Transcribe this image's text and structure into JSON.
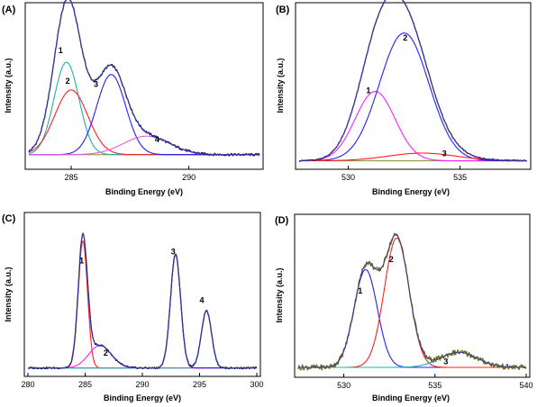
{
  "chart_data": [
    {
      "panel": "(A)",
      "type": "line",
      "xlabel": "Binding Energy (eV)",
      "ylabel": "Intensity (a.u.)",
      "xlim": [
        283.2,
        293.0
      ],
      "xticks": [
        285,
        290
      ],
      "baseline": 0.06,
      "raw_noise": 0.008,
      "envelope_color": "#1a1a6e",
      "series": [
        {
          "key": "1",
          "color": "#20b2aa",
          "center": 284.8,
          "fwhm": 1.25,
          "height": 0.6
        },
        {
          "key": "2",
          "color": "#ff2020",
          "center": 285.0,
          "fwhm": 1.65,
          "height": 0.42
        },
        {
          "key": "3",
          "color": "#2020ff",
          "center": 286.7,
          "fwhm": 1.45,
          "height": 0.52
        },
        {
          "key": "4",
          "color": "#e060e0",
          "center": 288.2,
          "fwhm": 2.3,
          "height": 0.12
        }
      ],
      "peak_labels": [
        {
          "text": "1",
          "x": 284.55,
          "y": 0.72
        },
        {
          "text": "2",
          "x": 284.85,
          "y": 0.52
        },
        {
          "text": "3",
          "x": 286.05,
          "y": 0.5
        },
        {
          "text": "4",
          "x": 288.65,
          "y": 0.14
        }
      ]
    },
    {
      "panel": "(B)",
      "type": "line",
      "xlabel": "Binding Energy (eV)",
      "ylabel": "Intensity (a.u.)",
      "xlim": [
        527.8,
        538.0
      ],
      "xticks": [
        530,
        535
      ],
      "baseline": 0.02,
      "raw_noise": 0.004,
      "envelope_color": "#1a1a6e",
      "series": [
        {
          "key": "1",
          "color": "#ff20ff",
          "center": 531.2,
          "fwhm": 2.1,
          "height": 0.45
        },
        {
          "key": "2",
          "color": "#2020ff",
          "center": 532.5,
          "fwhm": 2.6,
          "height": 0.83
        },
        {
          "key": "3",
          "color": "#ff2020",
          "center": 533.3,
          "fwhm": 3.6,
          "height": 0.05
        }
      ],
      "peak_labels": [
        {
          "text": "1",
          "x": 530.9,
          "y": 0.46
        },
        {
          "text": "2",
          "x": 532.55,
          "y": 0.8
        },
        {
          "text": "3",
          "x": 534.3,
          "y": 0.05
        }
      ]
    },
    {
      "panel": "(C)",
      "type": "line",
      "xlabel": "Binding Energy (eV)",
      "ylabel": "Intensity (a.u.)",
      "xlim": [
        280,
        300
      ],
      "xticks": [
        280,
        285,
        290,
        295,
        300
      ],
      "baseline": 0.02,
      "raw_noise": 0.006,
      "envelope_color": "#1a1a6e",
      "series": [
        {
          "key": "1",
          "color": "#ff2020",
          "center": 284.8,
          "fwhm": 0.95,
          "height": 0.84
        },
        {
          "key": "2",
          "color": "#ff20ff",
          "center": 286.3,
          "fwhm": 2.3,
          "height": 0.15
        },
        {
          "key": "3",
          "color": "#2020ff",
          "center": 292.9,
          "fwhm": 1.05,
          "height": 0.75
        },
        {
          "key": "4",
          "color": "#20b2aa",
          "center": 295.6,
          "fwhm": 1.05,
          "height": 0.38
        }
      ],
      "peak_labels": [
        {
          "text": "1",
          "x": 284.7,
          "y": 0.71
        },
        {
          "text": "2",
          "x": 286.8,
          "y": 0.1
        },
        {
          "text": "3",
          "x": 292.7,
          "y": 0.77
        },
        {
          "text": "4",
          "x": 295.2,
          "y": 0.45
        }
      ]
    },
    {
      "panel": "(D)",
      "type": "line",
      "xlabel": "Binding Energy (eV)",
      "ylabel": "Intensity (a.u.)",
      "xlim": [
        527.5,
        540.0
      ],
      "xticks": [
        530,
        535,
        540
      ],
      "baseline": 0.03,
      "raw_noise": 0.018,
      "envelope_color": "#6b6b1a",
      "baseline_color": "#ff00ff",
      "series": [
        {
          "key": "1",
          "color": "#2020ff",
          "center": 531.2,
          "fwhm": 1.5,
          "height": 0.65
        },
        {
          "key": "2",
          "color": "#ff2020",
          "center": 532.9,
          "fwhm": 1.6,
          "height": 0.86
        },
        {
          "key": "3",
          "color": "#20b2aa",
          "center": 536.3,
          "fwhm": 2.4,
          "height": 0.1
        }
      ],
      "peak_labels": [
        {
          "text": "1",
          "x": 530.9,
          "y": 0.52
        },
        {
          "text": "2",
          "x": 532.6,
          "y": 0.73
        },
        {
          "text": "3",
          "x": 535.6,
          "y": 0.05
        }
      ]
    }
  ]
}
